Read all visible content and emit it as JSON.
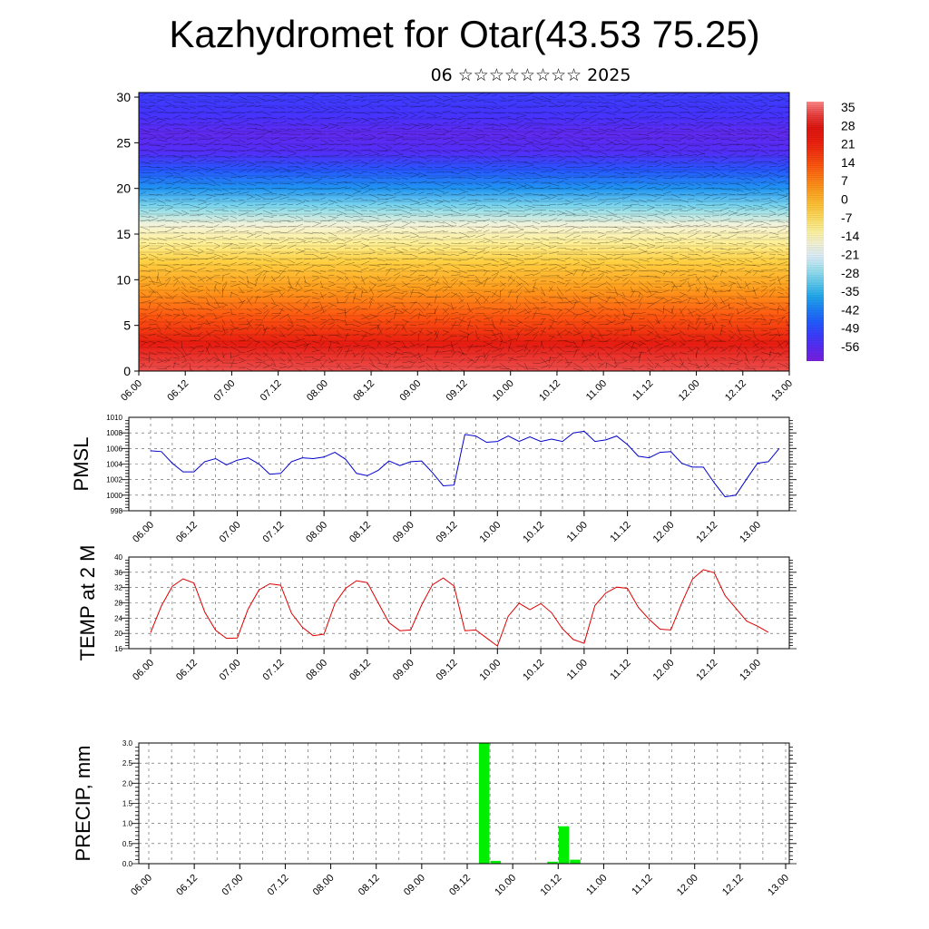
{
  "title": "Kazhydromet for Otar(43.53 75.25)",
  "subtitle": "06 ☆☆☆☆☆☆☆☆ 2025",
  "colors": {
    "pmsl_line": "#0000cc",
    "temp_line": "#dd0000",
    "precip_bar": "#00ee00",
    "grid": "#555555"
  },
  "chart_data": [
    {
      "type": "heatmap",
      "name": "cross-section",
      "x_tick_labels": [
        "06.00",
        "06.12",
        "07.00",
        "07.12",
        "08.00",
        "08.12",
        "09.00",
        "09.12",
        "10.00",
        "10.12",
        "11.00",
        "11.12",
        "12.00",
        "12.12",
        "13.00"
      ],
      "y_tick_labels": [
        "0",
        "5",
        "10",
        "15",
        "20",
        "25",
        "30"
      ],
      "ylim": [
        0,
        30.5
      ],
      "colorbar_labels": [
        "35",
        "28",
        "21",
        "14",
        "7",
        "0",
        "-7",
        "-14",
        "-21",
        "-28",
        "-35",
        "-42",
        "-49",
        "-56"
      ],
      "colorbar_range": [
        -60,
        38
      ],
      "colorscale": [
        "#7a1fe0",
        "#4433ff",
        "#1a66ff",
        "#22aaee",
        "#88ddee",
        "#eef4ff",
        "#fff4a0",
        "#ffd040",
        "#ff9a1a",
        "#ff5a10",
        "#ee2010",
        "#dd1410",
        "#ff8888"
      ],
      "profile": [
        [
          0,
          34
        ],
        [
          3,
          25
        ],
        [
          6,
          14
        ],
        [
          9,
          5
        ],
        [
          12,
          -3
        ],
        [
          14,
          -10
        ],
        [
          16,
          -16
        ],
        [
          18,
          -28
        ],
        [
          20,
          -38
        ],
        [
          22,
          -46
        ],
        [
          24,
          -54
        ],
        [
          26,
          -56
        ],
        [
          28,
          -52
        ],
        [
          30.5,
          -50
        ]
      ]
    },
    {
      "type": "line",
      "name": "PMSL",
      "ylabel": "PMSL",
      "x_tick_labels": [
        "06.00",
        "06.12",
        "07.00",
        "07.12",
        "08.00",
        "08.12",
        "09.00",
        "09.12",
        "10.00",
        "10.12",
        "11.00",
        "11.12",
        "12.00",
        "12.12",
        "13.00"
      ],
      "y_tick_labels": [
        "998",
        "1000",
        "1002",
        "1004",
        "1006",
        "1008",
        "1010"
      ],
      "ylim": [
        998,
        1010
      ],
      "grid": true,
      "values": [
        1005.7,
        1005.6,
        1004.1,
        1003.0,
        1003.0,
        1004.3,
        1004.7,
        1003.9,
        1004.5,
        1004.8,
        1004.0,
        1002.7,
        1002.8,
        1004.3,
        1004.8,
        1004.7,
        1004.9,
        1005.5,
        1004.6,
        1002.8,
        1002.5,
        1003.2,
        1004.4,
        1003.8,
        1004.3,
        1004.4,
        1002.9,
        1001.2,
        1001.3,
        1007.8,
        1007.6,
        1006.8,
        1006.9,
        1007.6,
        1006.9,
        1007.5,
        1006.9,
        1007.2,
        1006.9,
        1008.0,
        1008.2,
        1006.9,
        1007.1,
        1007.6,
        1006.5,
        1005.0,
        1004.8,
        1005.5,
        1005.6,
        1004.1,
        1003.6,
        1003.6,
        1001.6,
        999.8,
        1000.0,
        1002.1,
        1004.1,
        1004.3,
        1006.0
      ]
    },
    {
      "type": "line",
      "name": "TEMP at 2 M",
      "ylabel": "TEMP at 2 M",
      "x_tick_labels": [
        "06.00",
        "06.12",
        "07.00",
        "07.12",
        "08.00",
        "08.12",
        "09.00",
        "09.12",
        "10.00",
        "10.12",
        "11.00",
        "11.12",
        "12.00",
        "12.12",
        "13.00"
      ],
      "y_tick_labels": [
        "16",
        "20",
        "24",
        "28",
        "32",
        "36",
        "40"
      ],
      "ylim": [
        16,
        40
      ],
      "grid": true,
      "values": [
        20.2,
        27.2,
        32.3,
        34.3,
        33.2,
        25.6,
        20.8,
        18.7,
        18.8,
        26.4,
        31.4,
        33.0,
        32.6,
        25.3,
        21.6,
        19.4,
        19.8,
        27.8,
        31.8,
        33.8,
        33.3,
        28.0,
        22.8,
        20.7,
        20.9,
        27.4,
        32.7,
        34.5,
        32.4,
        20.7,
        20.9,
        18.8,
        16.7,
        24.5,
        27.9,
        26.2,
        27.8,
        25.4,
        21.2,
        18.4,
        17.4,
        27.3,
        30.6,
        32.1,
        31.8,
        26.8,
        23.7,
        21.1,
        20.9,
        27.9,
        34.2,
        36.7,
        35.9,
        29.9,
        26.6,
        23.2,
        21.9,
        20.3
      ]
    },
    {
      "type": "bar",
      "name": "PRECIP, mm",
      "ylabel": "PRECIP, mm",
      "x_tick_labels": [
        "06.00",
        "06.12",
        "07.00",
        "07.12",
        "08.00",
        "08.12",
        "09.00",
        "09.12",
        "10.00",
        "10.12",
        "11.00",
        "11.12",
        "12.00",
        "12.12",
        "13.00"
      ],
      "y_tick_labels": [
        "0.0",
        "0.5",
        "1.0",
        "1.5",
        "2.0",
        "2.5",
        "3.0"
      ],
      "ylim": [
        0,
        3.0
      ],
      "grid": true,
      "bars": [
        {
          "x": 29.5,
          "value": 3.0
        },
        {
          "x": 30.5,
          "value": 0.07
        },
        {
          "x": 35.5,
          "value": 0.05
        },
        {
          "x": 36.5,
          "value": 0.93
        },
        {
          "x": 37.5,
          "value": 0.1
        }
      ]
    }
  ]
}
